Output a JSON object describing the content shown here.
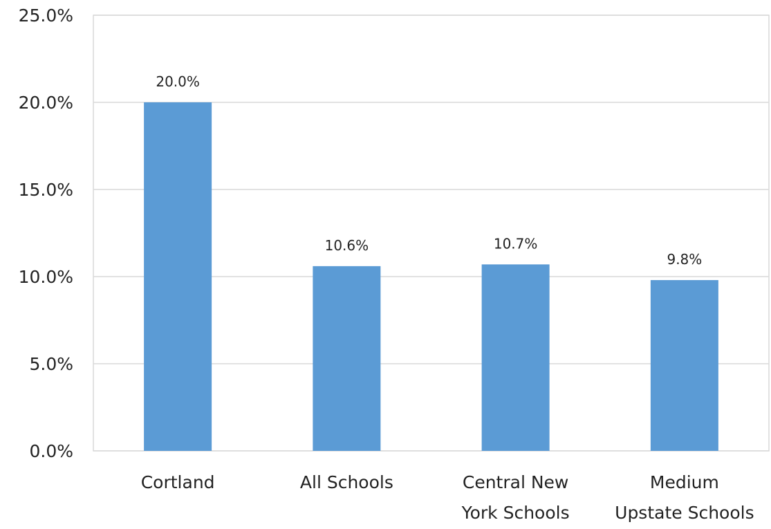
{
  "chart_data": {
    "type": "bar",
    "categories": [
      [
        "Cortland"
      ],
      [
        "All Schools"
      ],
      [
        "Central New",
        "York Schools"
      ],
      [
        "Medium",
        "Upstate Schools"
      ]
    ],
    "values": [
      20.0,
      10.6,
      10.7,
      9.8
    ],
    "data_labels": [
      "20.0%",
      "10.6%",
      "10.7%",
      "9.8%"
    ],
    "y_ticks": [
      0,
      5,
      10,
      15,
      20,
      25
    ],
    "y_tick_labels": [
      "0.0%",
      "5.0%",
      "10.0%",
      "15.0%",
      "20.0%",
      "25.0%"
    ],
    "ylim": [
      0,
      25
    ],
    "title": "",
    "xlabel": "",
    "ylabel": "",
    "grid": true,
    "legend": "none",
    "colors": {
      "bar": "#5B9BD5",
      "grid": "#D9D9D9",
      "text": "#222222"
    }
  }
}
